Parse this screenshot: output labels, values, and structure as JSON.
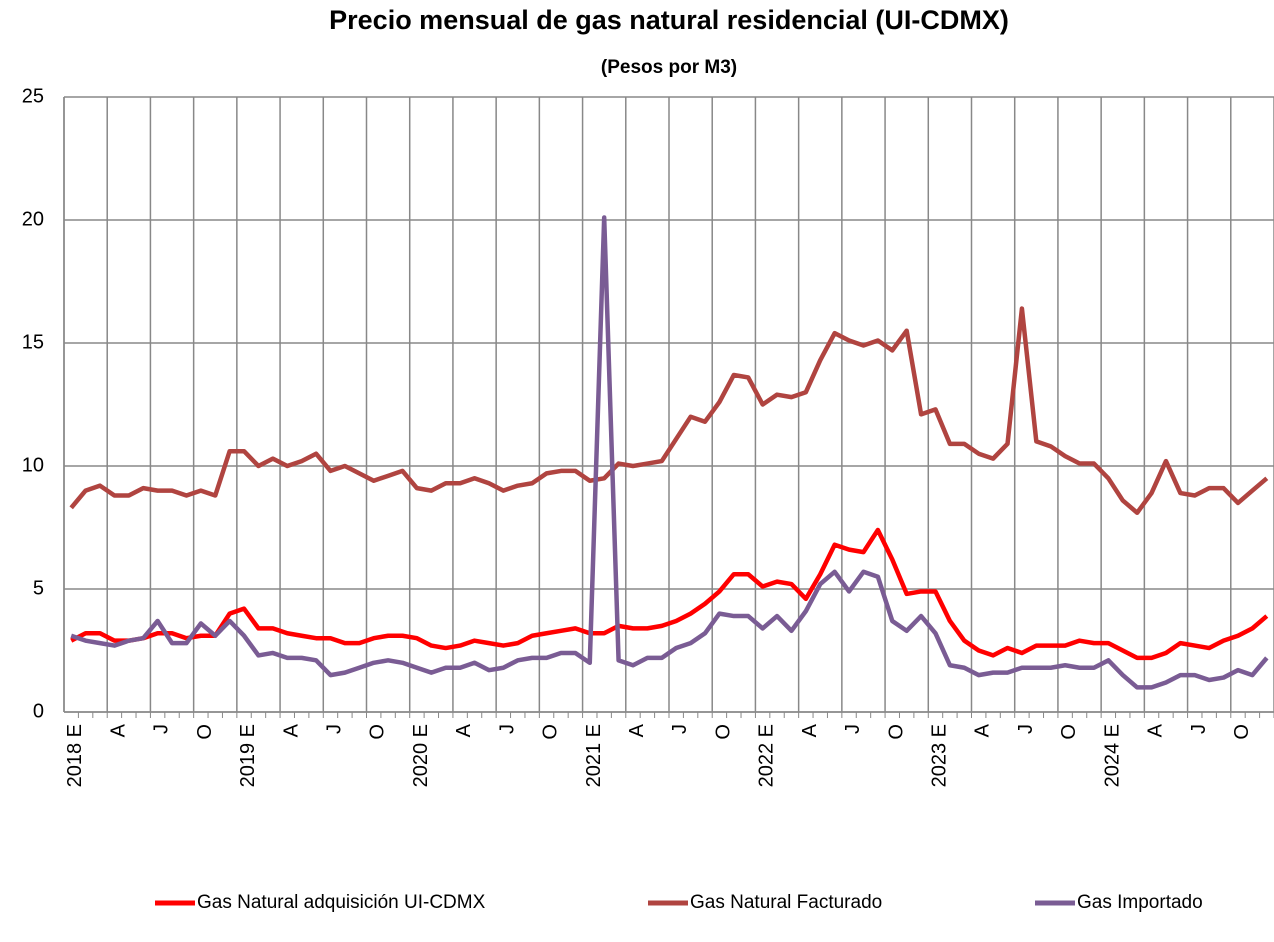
{
  "chart_data": {
    "type": "line",
    "title": "Precio mensual de gas natural residencial (UI-CDMX)",
    "subtitle": "(Pesos por  M3)",
    "categories": [
      "2018 E",
      null,
      null,
      "A",
      null,
      null,
      "J",
      null,
      null,
      "O",
      null,
      null,
      "2019 E",
      null,
      null,
      "A",
      null,
      null,
      "J",
      null,
      null,
      "O",
      null,
      null,
      "2020 E",
      null,
      null,
      "A",
      null,
      null,
      "J",
      null,
      null,
      "O",
      null,
      null,
      "2021 E",
      null,
      null,
      "A",
      null,
      null,
      "J",
      null,
      null,
      "O",
      null,
      null,
      "2022 E",
      null,
      null,
      "A",
      null,
      null,
      "J",
      null,
      null,
      "O",
      null,
      null,
      "2023 E",
      null,
      null,
      "A",
      null,
      null,
      "J",
      null,
      null,
      "O",
      null,
      null,
      "2024 E",
      null,
      null,
      "A",
      null,
      null,
      "J",
      null,
      null,
      "O",
      null,
      null
    ],
    "series": [
      {
        "name": "Gas Natural adquisición UI-CDMX",
        "color": "#ff0000",
        "values": [
          2.9,
          3.2,
          3.2,
          2.9,
          2.9,
          3.0,
          3.2,
          3.2,
          3.0,
          3.1,
          3.1,
          4.0,
          4.2,
          3.4,
          3.4,
          3.2,
          3.1,
          3.0,
          3.0,
          2.8,
          2.8,
          3.0,
          3.1,
          3.1,
          3.0,
          2.7,
          2.6,
          2.7,
          2.9,
          2.8,
          2.7,
          2.8,
          3.1,
          3.2,
          3.3,
          3.4,
          3.2,
          3.2,
          3.5,
          3.4,
          3.4,
          3.5,
          3.7,
          4.0,
          4.4,
          4.9,
          5.6,
          5.6,
          5.1,
          5.3,
          5.2,
          4.6,
          5.6,
          6.8,
          6.6,
          6.5,
          7.4,
          6.2,
          4.8,
          4.9,
          4.9,
          3.7,
          2.9,
          2.5,
          2.3,
          2.6,
          2.4,
          2.7,
          2.7,
          2.7,
          2.9,
          2.8,
          2.8,
          2.5,
          2.2,
          2.2,
          2.4,
          2.8,
          2.7,
          2.6,
          2.9,
          3.1,
          3.4,
          3.9
        ]
      },
      {
        "name": "Gas Natural Facturado",
        "color": "#b04440",
        "values": [
          8.3,
          9.0,
          9.2,
          8.8,
          8.8,
          9.1,
          9.0,
          9.0,
          8.8,
          9.0,
          8.8,
          10.6,
          10.6,
          10.0,
          10.3,
          10.0,
          10.2,
          10.5,
          9.8,
          10.0,
          9.7,
          9.4,
          9.6,
          9.8,
          9.1,
          9.0,
          9.3,
          9.3,
          9.5,
          9.3,
          9.0,
          9.2,
          9.3,
          9.7,
          9.8,
          9.8,
          9.4,
          9.5,
          10.1,
          10.0,
          10.1,
          10.2,
          11.1,
          12.0,
          11.8,
          12.6,
          13.7,
          13.6,
          12.5,
          12.9,
          12.8,
          13.0,
          14.3,
          15.4,
          15.1,
          14.9,
          15.1,
          14.7,
          15.5,
          12.1,
          12.3,
          10.9,
          10.9,
          10.5,
          10.3,
          10.9,
          16.4,
          11.0,
          10.8,
          10.4,
          10.1,
          10.1,
          9.5,
          8.6,
          8.1,
          8.9,
          10.2,
          8.9,
          8.8,
          9.1,
          9.1,
          8.5,
          9.0,
          9.5
        ]
      },
      {
        "name": "Gas Importado",
        "color": "#7a5c94",
        "values": [
          3.1,
          2.9,
          2.8,
          2.7,
          2.9,
          3.0,
          3.7,
          2.8,
          2.8,
          3.6,
          3.1,
          3.7,
          3.1,
          2.3,
          2.4,
          2.2,
          2.2,
          2.1,
          1.5,
          1.6,
          1.8,
          2.0,
          2.1,
          2.0,
          1.8,
          1.6,
          1.8,
          1.8,
          2.0,
          1.7,
          1.8,
          2.1,
          2.2,
          2.2,
          2.4,
          2.4,
          2.0,
          20.1,
          2.1,
          1.9,
          2.2,
          2.2,
          2.6,
          2.8,
          3.2,
          4.0,
          3.9,
          3.9,
          3.4,
          3.9,
          3.3,
          4.1,
          5.2,
          5.7,
          4.9,
          5.7,
          5.5,
          3.7,
          3.3,
          3.9,
          3.2,
          1.9,
          1.8,
          1.5,
          1.6,
          1.6,
          1.8,
          1.8,
          1.8,
          1.9,
          1.8,
          1.8,
          2.1,
          1.5,
          1.0,
          1.0,
          1.2,
          1.5,
          1.5,
          1.3,
          1.4,
          1.7,
          1.5,
          2.2
        ]
      }
    ],
    "ylim": [
      0,
      25
    ],
    "yticks": [
      0,
      5,
      10,
      15,
      20,
      25
    ],
    "grid": true,
    "legend": "bottom"
  }
}
